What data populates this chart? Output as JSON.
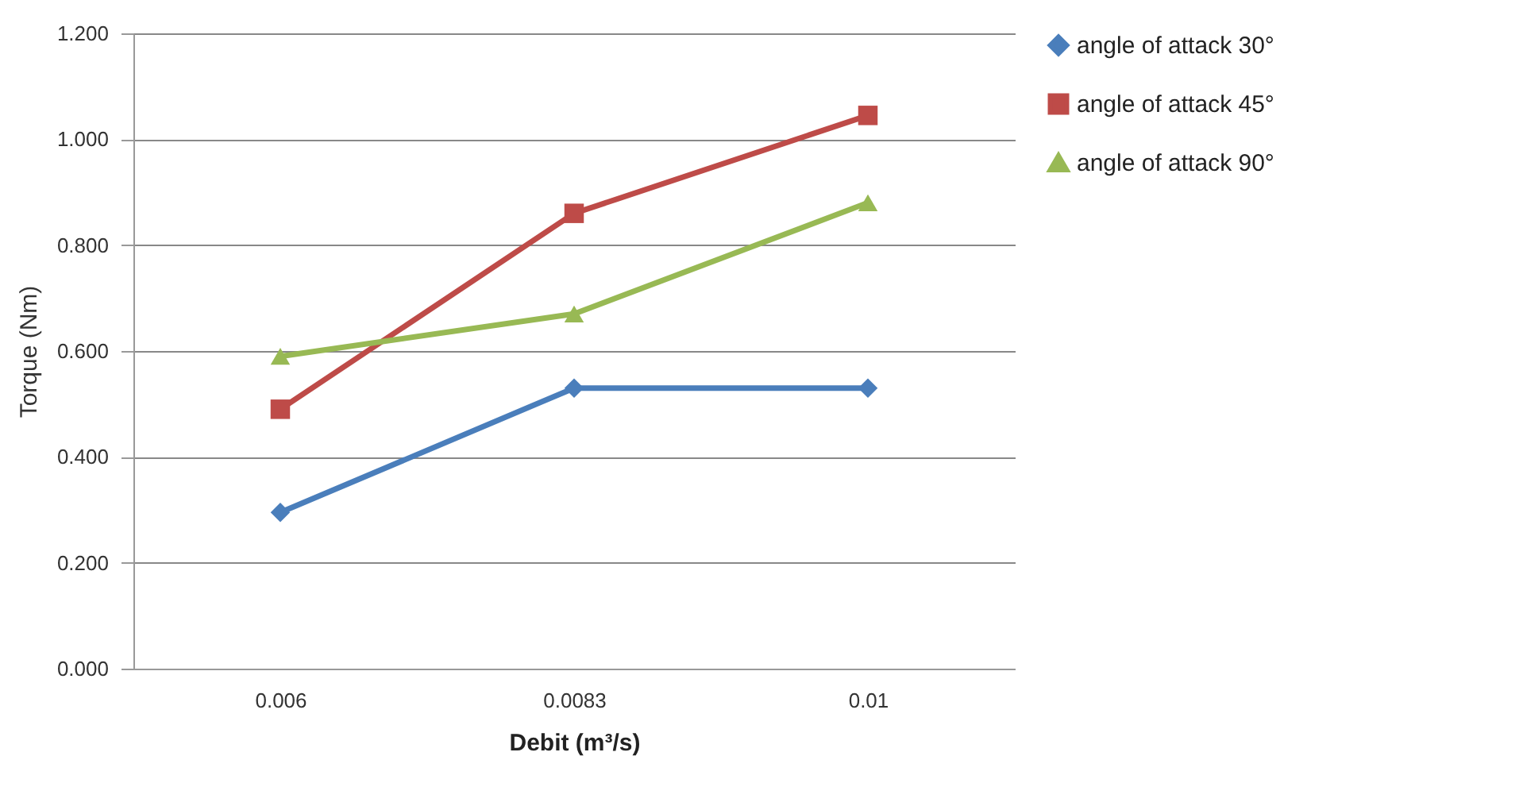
{
  "chart_data": {
    "type": "line",
    "xlabel": "Debit (m³/s)",
    "ylabel": "Torque (Nm)",
    "categories": [
      "0.006",
      "0.0083",
      "0.01"
    ],
    "series": [
      {
        "name": "angle of attack 30°",
        "color": "#4a7ebb",
        "marker": "diamond",
        "values": [
          0.295,
          0.53,
          0.53
        ]
      },
      {
        "name": "angle of attack 45°",
        "color": "#be4b48",
        "marker": "square",
        "values": [
          0.49,
          0.86,
          1.045
        ]
      },
      {
        "name": "angle of attack 90°",
        "color": "#98b954",
        "marker": "triangle",
        "values": [
          0.59,
          0.67,
          0.88
        ]
      }
    ],
    "ylim": [
      0,
      1.2
    ],
    "yticks": [
      {
        "value": 0,
        "label": "0.000"
      },
      {
        "value": 0.2,
        "label": "0.200"
      },
      {
        "value": 0.4,
        "label": "0.400"
      },
      {
        "value": 0.6,
        "label": "0.600"
      },
      {
        "value": 0.8,
        "label": "0.800"
      },
      {
        "value": 1.0,
        "label": "1.000"
      },
      {
        "value": 1.2,
        "label": "1.200"
      }
    ],
    "grid": "y",
    "legend": "right",
    "line_style": "solid"
  }
}
